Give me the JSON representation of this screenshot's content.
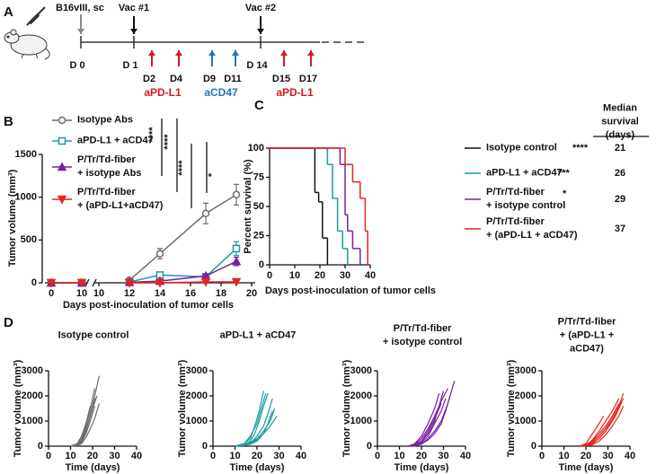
{
  "panel_labels": [
    "A",
    "B",
    "C",
    "D"
  ],
  "schedule": {
    "inoculation": "B16vIII, sc",
    "vaccines": [
      "Vac #1",
      "Vac #2"
    ],
    "days": [
      "D 0",
      "D 1",
      "D2",
      "D4",
      "D9",
      "D11",
      "D 14",
      "D15",
      "D17"
    ],
    "drugs": [
      "aPD-L1",
      "aCD47",
      "aPD-L1"
    ]
  },
  "chart_data": [
    {
      "type": "line",
      "ylabel": "Tumor volume (mm³)",
      "xlabel": "Days post-inoculation of tumor cells",
      "x": [
        0,
        10,
        12,
        14,
        17,
        19
      ],
      "xlim": [
        [
          0,
          10
        ],
        [
          10,
          20
        ]
      ],
      "xticks": [
        [
          0,
          10
        ],
        [
          10,
          12,
          14,
          16,
          18,
          20
        ]
      ],
      "ylim": [
        0,
        1500
      ],
      "yticks": [
        0,
        500,
        1000,
        1500
      ],
      "annotations": [
        "****",
        "****",
        "****",
        "*"
      ],
      "series": [
        {
          "name": "Isotype Abs",
          "color": "#6d6d6d",
          "marker": "circle-open",
          "values": [
            0,
            0,
            30,
            340,
            810,
            1030
          ],
          "errors": [
            0,
            0,
            10,
            60,
            120,
            120
          ]
        },
        {
          "name": "aPD-L1 + aCD47",
          "color": "#1a9aa0",
          "marker": "square-open",
          "values": [
            0,
            0,
            10,
            90,
            70,
            400
          ],
          "errors": [
            0,
            0,
            5,
            30,
            20,
            80
          ]
        },
        {
          "name": "P/Tr/Td-fiber\n+ isotype Abs",
          "color": "#7b1fa2",
          "marker": "triangle",
          "values": [
            0,
            0,
            5,
            20,
            80,
            250
          ],
          "errors": [
            0,
            0,
            3,
            10,
            20,
            50
          ]
        },
        {
          "name": "P/Tr/Td-fiber\n+ (aPD-L1+aCD47)",
          "color": "#e8231f",
          "marker": "triangle-down",
          "values": [
            0,
            0,
            0,
            0,
            10,
            10
          ],
          "errors": [
            0,
            0,
            0,
            0,
            5,
            5
          ]
        }
      ]
    },
    {
      "type": "step",
      "ylabel": "Percent survival (%)",
      "xlabel": "Days post-inoculation of tumor cells",
      "xlim": [
        0,
        40
      ],
      "xticks": [
        0,
        10,
        20,
        30,
        40
      ],
      "ylim": [
        0,
        100
      ],
      "yticks": [
        0,
        25,
        50,
        75,
        100
      ],
      "median_header": "Median survival\n(days)",
      "series": [
        {
          "name": "Isotype control",
          "color": "#111111",
          "significance": "****",
          "median": 21,
          "x": [
            0,
            18,
            19.5,
            21,
            23
          ],
          "values": [
            100,
            62,
            54,
            23,
            0
          ]
        },
        {
          "name": "aPD-L1 + aCD47",
          "color": "#1a9aa0",
          "significance": "***",
          "median": 26,
          "x": [
            0,
            23,
            25,
            27,
            29,
            31
          ],
          "values": [
            100,
            86,
            57,
            29,
            14,
            0
          ]
        },
        {
          "name": "P/Tr/Td-fiber\n+ isotype control",
          "color": "#7b1fa2",
          "significance": "*",
          "median": 29,
          "x": [
            0,
            28,
            30,
            31,
            33,
            36
          ],
          "values": [
            100,
            86,
            43,
            29,
            14,
            0
          ]
        },
        {
          "name": "P/Tr/Td-fiber\n+ (aPD-L1 + aCD47)",
          "color": "#e8231f",
          "median": 37,
          "x": [
            0,
            30,
            33,
            36,
            38,
            39
          ],
          "values": [
            100,
            86,
            71,
            57,
            29,
            0
          ]
        }
      ]
    },
    {
      "type": "spaghetti",
      "title": "Isotype control",
      "color": "#6d6d6d",
      "ylabel": "Tumor volume (mm³)",
      "xlabel": "Time (days)",
      "xlim": [
        0,
        40
      ],
      "xticks": [
        0,
        10,
        20,
        30,
        40
      ],
      "ylim": [
        0,
        3000
      ],
      "yticks": [
        0,
        1000,
        2000,
        3000
      ],
      "series": [
        {
          "x": [
            10,
            13,
            15,
            17,
            19,
            21,
            23
          ],
          "values": [
            0,
            50,
            200,
            600,
            1300,
            2000,
            2800
          ]
        },
        {
          "x": [
            10,
            13,
            15,
            17,
            19,
            21
          ],
          "values": [
            0,
            80,
            300,
            800,
            1500,
            2300
          ]
        },
        {
          "x": [
            10,
            13,
            15,
            17,
            19,
            21
          ],
          "values": [
            0,
            30,
            150,
            500,
            1000,
            1600
          ]
        },
        {
          "x": [
            10,
            12,
            14,
            16,
            18,
            20,
            22
          ],
          "values": [
            0,
            40,
            150,
            400,
            900,
            1500,
            2000
          ]
        },
        {
          "x": [
            10,
            13,
            15,
            17,
            19
          ],
          "values": [
            0,
            100,
            400,
            900,
            1600
          ]
        },
        {
          "x": [
            10,
            13,
            15,
            17,
            19,
            21
          ],
          "values": [
            0,
            60,
            250,
            700,
            1200,
            1900
          ]
        },
        {
          "x": [
            10,
            13,
            15,
            17,
            19,
            21,
            23
          ],
          "values": [
            0,
            20,
            100,
            350,
            700,
            1100,
            1700
          ]
        }
      ]
    },
    {
      "type": "spaghetti",
      "title": "aPD-L1 + aCD47",
      "color": "#1a9aa0",
      "ylabel": "Tumor volume (mm³)",
      "xlabel": "Time (days)",
      "xlim": [
        0,
        40
      ],
      "xticks": [
        0,
        10,
        20,
        30,
        40
      ],
      "ylim": [
        0,
        3000
      ],
      "yticks": [
        0,
        1000,
        2000,
        3000
      ],
      "series": [
        {
          "x": [
            10,
            14,
            17,
            19,
            21,
            23
          ],
          "values": [
            0,
            100,
            300,
            800,
            1400,
            2200
          ]
        },
        {
          "x": [
            10,
            14,
            17,
            19,
            21,
            23,
            25
          ],
          "values": [
            0,
            50,
            200,
            500,
            1000,
            1600,
            2100
          ]
        },
        {
          "x": [
            10,
            14,
            17,
            20,
            23,
            25,
            27
          ],
          "values": [
            0,
            30,
            100,
            400,
            800,
            1300,
            1900
          ]
        },
        {
          "x": [
            10,
            14,
            17,
            20,
            23,
            26,
            28
          ],
          "values": [
            0,
            60,
            150,
            300,
            600,
            1000,
            1500
          ]
        },
        {
          "x": [
            10,
            14,
            17,
            20,
            23,
            26,
            29
          ],
          "values": [
            0,
            40,
            100,
            250,
            500,
            800,
            1200
          ]
        },
        {
          "x": [
            10,
            14,
            17,
            20,
            22,
            24
          ],
          "values": [
            0,
            80,
            400,
            900,
            1500,
            2100
          ]
        },
        {
          "x": [
            10,
            14,
            17,
            20,
            23,
            25,
            27
          ],
          "values": [
            0,
            20,
            80,
            200,
            500,
            900,
            1400
          ]
        }
      ]
    },
    {
      "type": "spaghetti",
      "title": "P/Tr/Td-fiber\n+ isotype control",
      "color": "#7b1fa2",
      "ylabel": "Tumor volume (mm³)",
      "xlabel": "Time (days)",
      "xlim": [
        0,
        40
      ],
      "xticks": [
        0,
        10,
        20,
        30,
        40
      ],
      "ylim": [
        0,
        3000
      ],
      "yticks": [
        0,
        1000,
        2000,
        3000
      ],
      "series": [
        {
          "x": [
            14,
            17,
            20,
            23,
            26,
            28,
            30
          ],
          "values": [
            0,
            50,
            200,
            500,
            1000,
            1600,
            2200
          ]
        },
        {
          "x": [
            14,
            17,
            20,
            23,
            26,
            28
          ],
          "values": [
            0,
            100,
            400,
            900,
            1500,
            2100
          ]
        },
        {
          "x": [
            14,
            17,
            20,
            23,
            26,
            29,
            31
          ],
          "values": [
            0,
            30,
            150,
            400,
            900,
            1400,
            1900
          ]
        },
        {
          "x": [
            14,
            17,
            20,
            23,
            26,
            29,
            32,
            35
          ],
          "values": [
            0,
            20,
            100,
            300,
            600,
            1000,
            1700,
            2600
          ]
        },
        {
          "x": [
            14,
            17,
            20,
            23,
            26,
            29,
            32
          ],
          "values": [
            0,
            60,
            300,
            700,
            1200,
            1800,
            2300
          ]
        },
        {
          "x": [
            14,
            17,
            20,
            23,
            26,
            29
          ],
          "values": [
            0,
            40,
            200,
            600,
            1100,
            1700
          ]
        },
        {
          "x": [
            14,
            17,
            20,
            23,
            26,
            29,
            31,
            33
          ],
          "values": [
            0,
            10,
            80,
            250,
            500,
            900,
            1400,
            2000
          ]
        }
      ]
    },
    {
      "type": "spaghetti",
      "title": "P/Tr/Td-fiber\n+ (aPD-L1 + aCD47)",
      "color": "#e8231f",
      "ylabel": "Tumor volume (mm³)",
      "xlabel": "Time (days)",
      "xlim": [
        0,
        40
      ],
      "xticks": [
        0,
        10,
        20,
        30,
        40
      ],
      "ylim": [
        0,
        3000
      ],
      "yticks": [
        0,
        1000,
        2000,
        3000
      ],
      "series": [
        {
          "x": [
            17,
            20,
            23,
            26,
            28
          ],
          "values": [
            0,
            100,
            500,
            900,
            1200
          ]
        },
        {
          "x": [
            17,
            20,
            23,
            26,
            29,
            32,
            35,
            37
          ],
          "values": [
            0,
            30,
            150,
            400,
            700,
            1100,
            1600,
            2100
          ]
        },
        {
          "x": [
            17,
            20,
            23,
            26,
            29,
            32,
            35,
            37
          ],
          "values": [
            0,
            20,
            100,
            300,
            600,
            1000,
            1500,
            1900
          ]
        },
        {
          "x": [
            17,
            20,
            23,
            26,
            29,
            32,
            35
          ],
          "values": [
            0,
            50,
            200,
            500,
            800,
            1200,
            1700
          ]
        },
        {
          "x": [
            17,
            20,
            23,
            26,
            29,
            32,
            35,
            37
          ],
          "values": [
            0,
            10,
            60,
            200,
            450,
            800,
            1200,
            1600
          ]
        },
        {
          "x": [
            17,
            20,
            23,
            26,
            29,
            32,
            35
          ],
          "values": [
            0,
            40,
            250,
            600,
            1000,
            1400,
            1900
          ]
        },
        {
          "x": [
            17,
            20,
            23,
            26,
            29,
            32,
            34,
            36
          ],
          "values": [
            0,
            30,
            150,
            400,
            700,
            1000,
            1300,
            1800
          ]
        }
      ]
    }
  ]
}
